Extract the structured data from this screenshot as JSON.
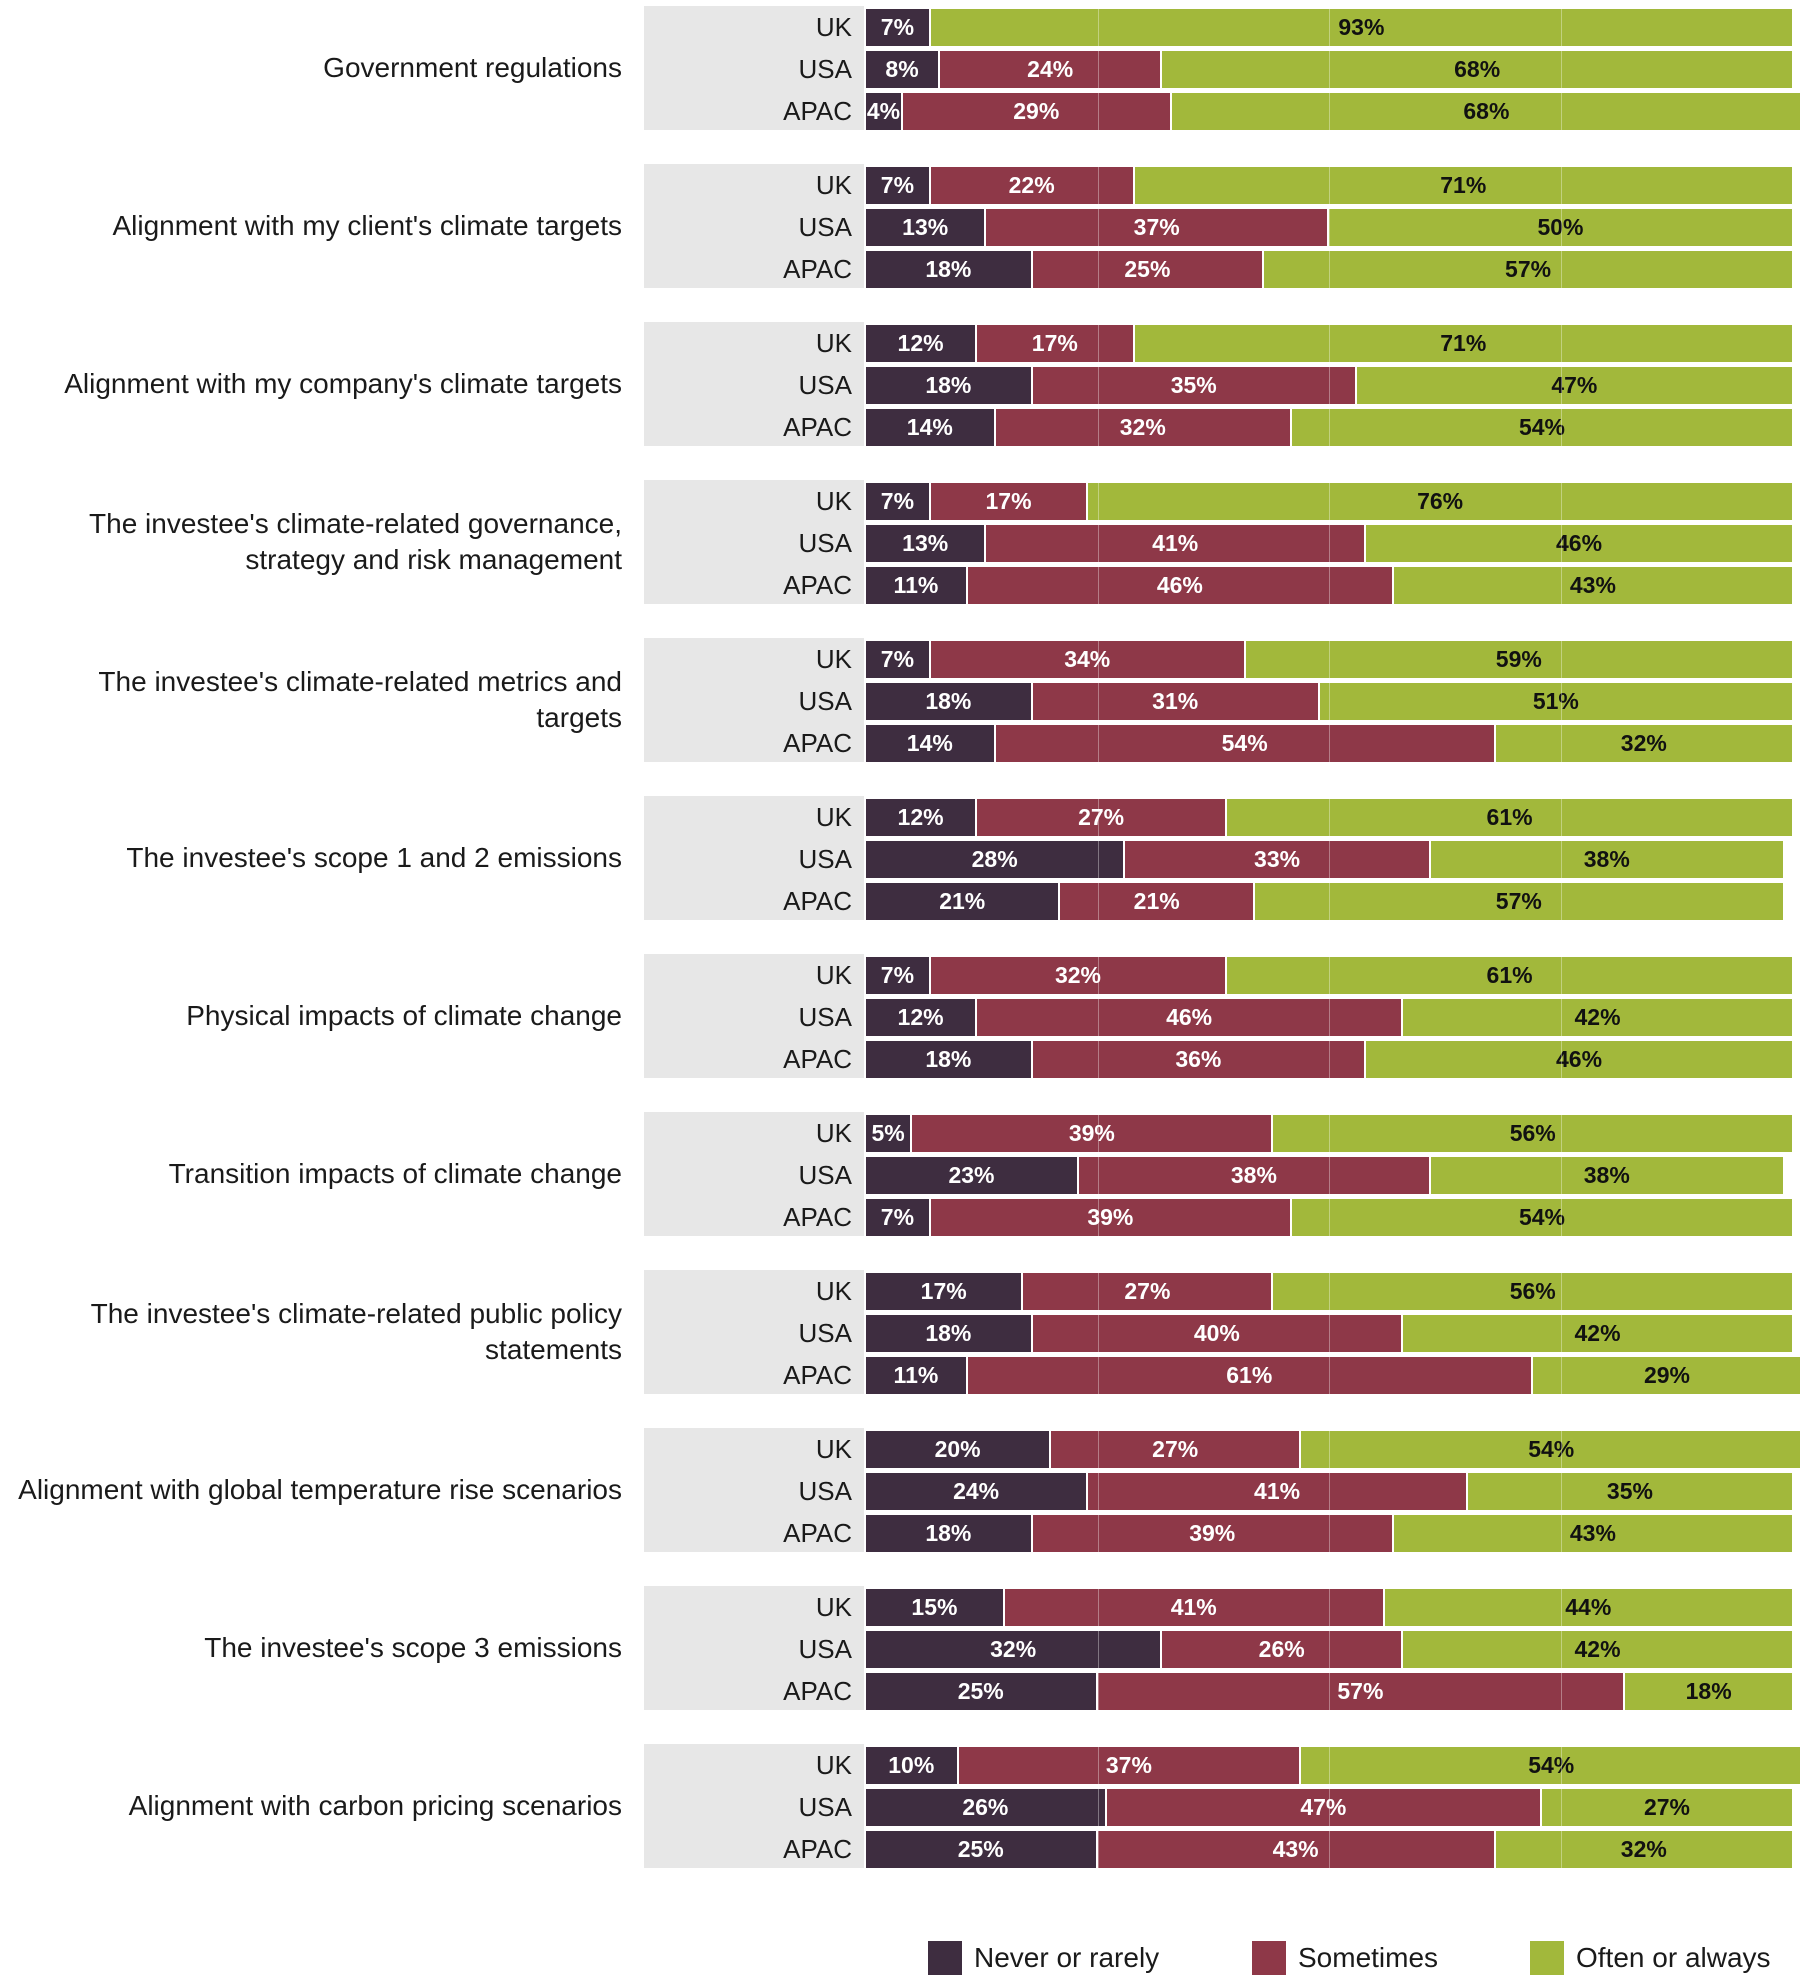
{
  "chart_data": {
    "type": "bar",
    "orientation": "horizontal",
    "stacked": true,
    "percent_labels": true,
    "regions": [
      "UK",
      "USA",
      "APAC"
    ],
    "series": [
      {
        "name": "Never or rarely",
        "color": "#3e2d40"
      },
      {
        "name": "Sometimes",
        "color": "#8e3848"
      },
      {
        "name": "Often or always",
        "color": "#a2b83b"
      }
    ],
    "xlim": [
      0,
      100
    ],
    "groups": [
      {
        "label": "Government regulations",
        "rows": [
          [
            7,
            0,
            93
          ],
          [
            8,
            24,
            68
          ],
          [
            4,
            29,
            68
          ]
        ]
      },
      {
        "label": "Alignment with my client's climate targets",
        "rows": [
          [
            7,
            22,
            71
          ],
          [
            13,
            37,
            50
          ],
          [
            18,
            25,
            57
          ]
        ]
      },
      {
        "label": "Alignment with my company's climate targets",
        "rows": [
          [
            12,
            17,
            71
          ],
          [
            18,
            35,
            47
          ],
          [
            14,
            32,
            54
          ]
        ]
      },
      {
        "label": "The investee's climate-related governance, strategy and risk management",
        "rows": [
          [
            7,
            17,
            76
          ],
          [
            13,
            41,
            46
          ],
          [
            11,
            46,
            43
          ]
        ]
      },
      {
        "label": "The investee's climate-related metrics and targets",
        "rows": [
          [
            7,
            34,
            59
          ],
          [
            18,
            31,
            51
          ],
          [
            14,
            54,
            32
          ]
        ]
      },
      {
        "label": "The investee's scope 1 and 2 emissions",
        "rows": [
          [
            12,
            27,
            61
          ],
          [
            28,
            33,
            38
          ],
          [
            21,
            21,
            57
          ]
        ]
      },
      {
        "label": "Physical impacts of climate change",
        "rows": [
          [
            7,
            32,
            61
          ],
          [
            12,
            46,
            42
          ],
          [
            18,
            36,
            46
          ]
        ]
      },
      {
        "label": "Transition impacts of climate change",
        "rows": [
          [
            5,
            39,
            56
          ],
          [
            23,
            38,
            38
          ],
          [
            7,
            39,
            54
          ]
        ]
      },
      {
        "label": "The investee's climate-related public policy statements",
        "rows": [
          [
            17,
            27,
            56
          ],
          [
            18,
            40,
            42
          ],
          [
            11,
            61,
            29
          ]
        ]
      },
      {
        "label": "Alignment with global temperature rise scenarios",
        "rows": [
          [
            20,
            27,
            54
          ],
          [
            24,
            41,
            35
          ],
          [
            18,
            39,
            43
          ]
        ]
      },
      {
        "label": "The investee's scope 3 emissions",
        "rows": [
          [
            15,
            41,
            44
          ],
          [
            32,
            26,
            42
          ],
          [
            25,
            57,
            18
          ]
        ]
      },
      {
        "label": "Alignment with carbon pricing scenarios",
        "rows": [
          [
            10,
            37,
            54
          ],
          [
            26,
            47,
            27
          ],
          [
            25,
            43,
            32
          ]
        ]
      }
    ]
  }
}
